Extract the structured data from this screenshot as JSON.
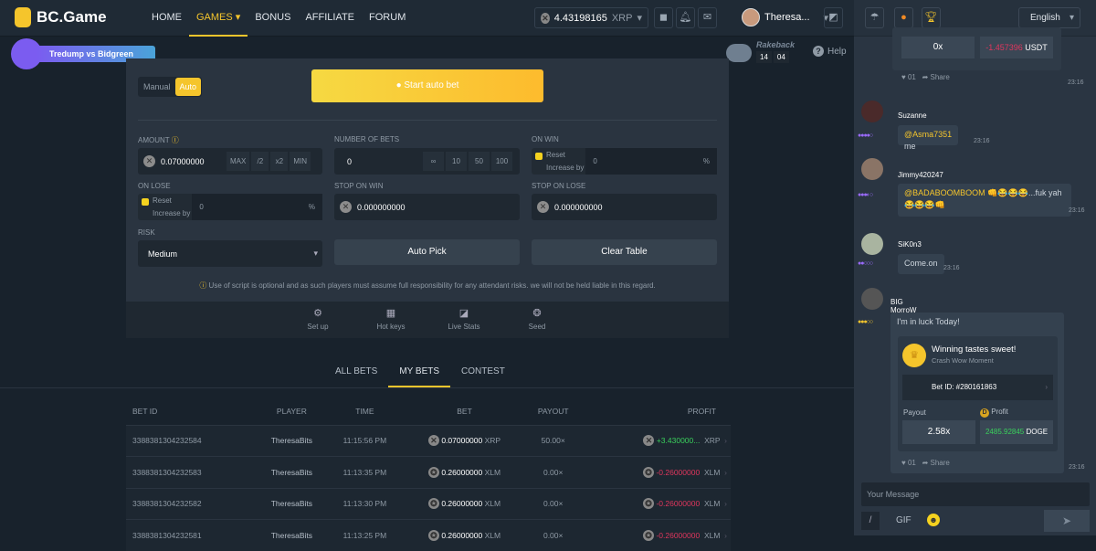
{
  "header": {
    "brand": "BC.Game",
    "nav": [
      "HOME",
      "GAMES",
      "BONUS",
      "AFFILIATE",
      "FORUM"
    ],
    "active_nav": "GAMES",
    "balance": "4.43198165",
    "currency": "XRP",
    "username": "Theresa...",
    "promo": "Tredump vs Bidgreen",
    "rakeback_label": "Rakeback",
    "rakeback_time": [
      "14",
      "04"
    ],
    "help": "Help"
  },
  "panel": {
    "modes": [
      "Manual",
      "Auto"
    ],
    "active_mode": "Auto",
    "start_button": "Start auto bet",
    "amount": {
      "label": "AMOUNT",
      "value": "0.07000000",
      "chips": [
        "MAX",
        "/2",
        "x2",
        "MIN"
      ]
    },
    "number_of_bets": {
      "label": "NUMBER OF BETS",
      "value": "0",
      "chips": [
        "∞",
        "10",
        "50",
        "100"
      ]
    },
    "on_win": {
      "label": "ON WIN",
      "reset": "Reset",
      "increase": "Increase by",
      "value": "0",
      "unit": "%"
    },
    "on_lose": {
      "label": "ON LOSE",
      "reset": "Reset",
      "increase": "Increase by",
      "value": "0",
      "unit": "%"
    },
    "stop_on_win": {
      "label": "STOP ON WIN",
      "value": "0.000000000"
    },
    "stop_on_lose": {
      "label": "STOP ON LOSE",
      "value": "0.000000000"
    },
    "risk": {
      "label": "RISK",
      "value": "Medium"
    },
    "auto_pick": "Auto Pick",
    "clear_table": "Clear Table",
    "notice": "Use of script is optional and as such players must assume full responsibility for any attendant risks. we will not be held liable in this regard.",
    "tools": [
      "Set up",
      "Hot keys",
      "Live Stats",
      "Seed"
    ]
  },
  "bets_tabs": [
    "ALL BETS",
    "MY BETS",
    "CONTEST"
  ],
  "active_tab": "MY BETS",
  "table": {
    "columns": [
      "BET ID",
      "PLAYER",
      "TIME",
      "BET",
      "PAYOUT",
      "PROFIT"
    ],
    "rows": [
      {
        "id": "3388381304232584",
        "player": "TheresaBits",
        "time": "11:15:56 PM",
        "bet": "0.07000000",
        "bet_cur": "XRP",
        "payout": "50.00×",
        "profit": "+3.430000...",
        "profit_cur": "XRP",
        "positive": true
      },
      {
        "id": "3388381304232583",
        "player": "TheresaBits",
        "time": "11:13:35 PM",
        "bet": "0.26000000",
        "bet_cur": "XLM",
        "payout": "0.00×",
        "profit": "-0.26000000",
        "profit_cur": "XLM",
        "positive": false
      },
      {
        "id": "3388381304232582",
        "player": "TheresaBits",
        "time": "11:13:30 PM",
        "bet": "0.26000000",
        "bet_cur": "XLM",
        "payout": "0.00×",
        "profit": "-0.26000000",
        "profit_cur": "XLM",
        "positive": false
      },
      {
        "id": "3388381304232581",
        "player": "TheresaBits",
        "time": "11:13:25 PM",
        "bet": "0.26000000",
        "bet_cur": "XLM",
        "payout": "0.00×",
        "profit": "-0.26000000",
        "profit_cur": "XLM",
        "positive": false
      }
    ]
  },
  "chat": {
    "language": "English",
    "top_card": {
      "payout": "0x",
      "profit": "-1.457396",
      "profit_cur": "USDT",
      "likes": "01",
      "share": "Share",
      "time": "23:16"
    },
    "messages": [
      {
        "name": "Suzanne",
        "mention": "@Asma7351",
        "text": "me",
        "time": "23:16"
      },
      {
        "name": "Jimmy420247",
        "mention": "@BADABOOMBOOM",
        "text": "👊😂😂😂...fuk yah😂😂😂👊",
        "time": "23:16"
      },
      {
        "name": "SiK0n3",
        "mention": "",
        "text": "Come.on",
        "time": "23:16"
      },
      {
        "name": "BIG MorroW",
        "mention": "",
        "text": "I'm in luck Today!",
        "time": "23:16"
      }
    ],
    "win_card": {
      "title": "Winning tastes sweet!",
      "subtitle": "Crash Wow Moment",
      "bet_id": "Bet ID: #280161863",
      "payout_label": "Payout",
      "profit_label": "Profit",
      "payout": "2.58x",
      "profit": "2485.92845",
      "profit_cur": "DOGE",
      "likes": "01",
      "share": "Share"
    },
    "input_placeholder": "Your Message",
    "gif": "GIF"
  }
}
